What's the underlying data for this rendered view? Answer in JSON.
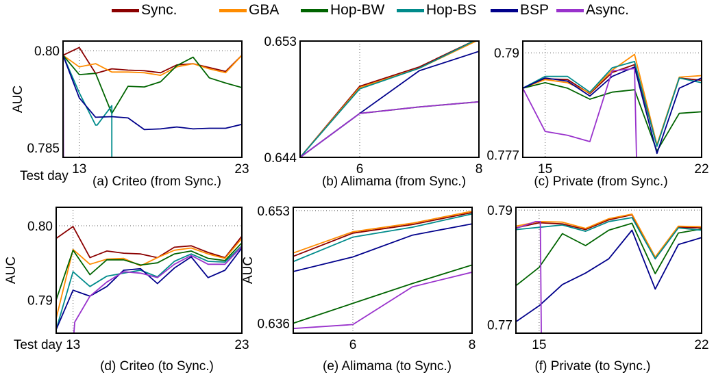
{
  "legend": [
    {
      "name": "Sync.",
      "color": "#8b0000"
    },
    {
      "name": "GBA",
      "color": "#ff8c00"
    },
    {
      "name": "Hop-BW",
      "color": "#006400"
    },
    {
      "name": "Hop-BS",
      "color": "#008b8b"
    },
    {
      "name": "BSP",
      "color": "#00008b"
    },
    {
      "name": "Async.",
      "color": "#9932cc"
    }
  ],
  "chart_data": [
    {
      "type": "line",
      "caption": "(a) Criteo (from Sync.)",
      "ylabel": "AUC",
      "xlabel_prefix": "Test day",
      "xlim": [
        12,
        23
      ],
      "ylim": [
        0.7835,
        0.8015
      ],
      "xticks": [
        13,
        23
      ],
      "yticks": [
        0.785,
        0.8
      ],
      "grid_x": [
        13
      ],
      "grid_y": [
        0.8
      ],
      "series": [
        {
          "name": "Sync.",
          "x": [
            12,
            13,
            14,
            15,
            16,
            17,
            18,
            19,
            20,
            21,
            22,
            23
          ],
          "y": [
            0.7993,
            0.8005,
            0.7965,
            0.7972,
            0.797,
            0.7969,
            0.7966,
            0.7978,
            0.798,
            0.7974,
            0.7968,
            0.7993
          ]
        },
        {
          "name": "GBA",
          "x": [
            12,
            13,
            14,
            15,
            16,
            17,
            18,
            19,
            20,
            21,
            22,
            23
          ],
          "y": [
            0.7993,
            0.7975,
            0.798,
            0.7967,
            0.7967,
            0.7966,
            0.7962,
            0.7975,
            0.798,
            0.7972,
            0.7966,
            0.7993
          ]
        },
        {
          "name": "Hop-BW",
          "x": [
            12,
            13,
            14,
            15,
            16,
            17,
            18,
            19,
            20,
            21,
            22,
            23
          ],
          "y": [
            0.7993,
            0.7963,
            0.7965,
            0.7903,
            0.7945,
            0.7944,
            0.7952,
            0.7977,
            0.799,
            0.7958,
            0.795,
            0.7943
          ]
        },
        {
          "name": "Hop-BS",
          "x": [
            12,
            13,
            14,
            14.1,
            15,
            15
          ],
          "y": [
            0.7993,
            0.7935,
            0.7885,
            0.7885,
            0.7915,
            0.7795
          ]
        },
        {
          "name": "BSP",
          "x": [
            12,
            13,
            14,
            15,
            16,
            17,
            18,
            19,
            20,
            21,
            22,
            23
          ],
          "y": [
            0.7993,
            0.7927,
            0.7897,
            0.7898,
            0.7896,
            0.7878,
            0.7879,
            0.7882,
            0.7879,
            0.788,
            0.788,
            0.7886
          ]
        },
        {
          "name": "Async.",
          "x": [
            12,
            12.04
          ],
          "y": [
            0.7993,
            0.7795
          ]
        }
      ]
    },
    {
      "type": "line",
      "caption": "(b) Alimama (from Sync.)",
      "ylabel": "",
      "xlim": [
        5,
        8
      ],
      "ylim": [
        0.644,
        0.653
      ],
      "xticks": [
        6,
        8
      ],
      "yticks": [
        0.644,
        0.653
      ],
      "grid_x": [
        6
      ],
      "grid_y": [
        0.653
      ],
      "series": [
        {
          "name": "Sync.",
          "x": [
            5,
            6,
            7,
            8
          ],
          "y": [
            0.644,
            0.6495,
            0.651,
            0.6532
          ]
        },
        {
          "name": "GBA",
          "x": [
            5,
            6,
            7,
            8
          ],
          "y": [
            0.644,
            0.6494,
            0.6509,
            0.6531
          ]
        },
        {
          "name": "Hop-BW",
          "x": [
            5,
            6,
            7,
            8
          ],
          "y": [
            0.644,
            0.6474,
            0.6479,
            0.6483
          ]
        },
        {
          "name": "Hop-BS",
          "x": [
            5,
            6,
            7,
            8
          ],
          "y": [
            0.644,
            0.6493,
            0.6509,
            0.6532
          ]
        },
        {
          "name": "BSP",
          "x": [
            5,
            6,
            7,
            8
          ],
          "y": [
            0.644,
            0.6474,
            0.6507,
            0.6522
          ]
        },
        {
          "name": "Async.",
          "x": [
            5,
            6,
            7,
            8
          ],
          "y": [
            0.644,
            0.6474,
            0.6479,
            0.6483
          ]
        }
      ]
    },
    {
      "type": "line",
      "caption": "(c) Private (from Sync.)",
      "ylabel": "",
      "xlim": [
        14,
        22
      ],
      "ylim": [
        0.7767,
        0.7915
      ],
      "xticks": [
        15,
        22
      ],
      "yticks": [
        0.777,
        0.79
      ],
      "grid_x": [
        15
      ],
      "grid_y": [
        0.79
      ],
      "series": [
        {
          "name": "Sync.",
          "x": [
            14,
            15,
            16,
            17,
            18,
            19,
            20,
            21,
            22
          ],
          "y": [
            0.7855,
            0.7867,
            0.7866,
            0.7848,
            0.7875,
            0.7885,
            0.7782,
            0.7868,
            0.7865
          ]
        },
        {
          "name": "GBA",
          "x": [
            14,
            15,
            16,
            17,
            18,
            19,
            20,
            21,
            22
          ],
          "y": [
            0.7855,
            0.7866,
            0.7862,
            0.7849,
            0.7878,
            0.7898,
            0.7783,
            0.7869,
            0.7871
          ]
        },
        {
          "name": "Hop-BW",
          "x": [
            14,
            15,
            16,
            17,
            18,
            19,
            20,
            21,
            22
          ],
          "y": [
            0.7855,
            0.7862,
            0.7855,
            0.7841,
            0.785,
            0.7853,
            0.7775,
            0.7823,
            0.7825
          ]
        },
        {
          "name": "Hop-BS",
          "x": [
            14,
            15,
            16,
            17,
            18,
            19,
            20,
            21,
            22
          ],
          "y": [
            0.7855,
            0.787,
            0.787,
            0.785,
            0.7881,
            0.7889,
            0.7781,
            0.7868,
            0.7862
          ]
        },
        {
          "name": "BSP",
          "x": [
            14,
            15,
            16,
            17,
            18,
            19,
            20,
            21,
            22
          ],
          "y": [
            0.7855,
            0.7868,
            0.7864,
            0.7845,
            0.787,
            0.7882,
            0.7772,
            0.7855,
            0.7868
          ]
        },
        {
          "name": "Async.",
          "x": [
            14,
            15,
            16,
            17,
            18,
            19,
            19.1
          ],
          "y": [
            0.7855,
            0.78,
            0.7795,
            0.7787,
            0.7877,
            0.788,
            0.775
          ]
        }
      ]
    },
    {
      "type": "line",
      "caption": "(d) Criteo (to Sync.)",
      "ylabel": "AUC",
      "xlabel_prefix": "Test day",
      "xlim": [
        12,
        23
      ],
      "ylim": [
        0.7855,
        0.8025
      ],
      "xticks": [
        13,
        23
      ],
      "yticks": [
        0.79,
        0.8
      ],
      "grid_x": [
        13
      ],
      "grid_y": [
        0.8
      ],
      "series": [
        {
          "name": "Sync.",
          "x": [
            12,
            13,
            14,
            15,
            16,
            17,
            18,
            19,
            20,
            21,
            22,
            23
          ],
          "y": [
            0.7983,
            0.7999,
            0.7957,
            0.7966,
            0.7963,
            0.7962,
            0.7957,
            0.7971,
            0.7973,
            0.7964,
            0.7957,
            0.7986
          ]
        },
        {
          "name": "GBA",
          "x": [
            12,
            13,
            14,
            15,
            16,
            17,
            18,
            19,
            20,
            21,
            22,
            23
          ],
          "y": [
            0.7875,
            0.7968,
            0.7948,
            0.7955,
            0.7956,
            0.7946,
            0.7957,
            0.7967,
            0.797,
            0.7962,
            0.7956,
            0.7983
          ]
        },
        {
          "name": "Hop-BW",
          "x": [
            12,
            13,
            14,
            15,
            16,
            17,
            18,
            19,
            20,
            21,
            22,
            23
          ],
          "y": [
            0.79,
            0.7967,
            0.7934,
            0.7954,
            0.7954,
            0.7947,
            0.795,
            0.7962,
            0.7966,
            0.7956,
            0.7953,
            0.7977
          ]
        },
        {
          "name": "Hop-BS",
          "x": [
            12,
            13,
            14,
            15,
            16,
            17,
            18,
            19,
            20,
            21,
            22,
            23
          ],
          "y": [
            0.786,
            0.7938,
            0.7918,
            0.7932,
            0.7936,
            0.794,
            0.7931,
            0.7952,
            0.7962,
            0.7952,
            0.7951,
            0.7973
          ]
        },
        {
          "name": "BSP",
          "x": [
            12,
            13,
            14,
            15,
            16,
            17,
            18,
            19,
            20,
            21,
            22,
            23
          ],
          "y": [
            0.786,
            0.7913,
            0.7905,
            0.7918,
            0.794,
            0.7942,
            0.7922,
            0.7943,
            0.7958,
            0.793,
            0.794,
            0.797
          ]
        },
        {
          "name": "Async.",
          "x": [
            13,
            13.1,
            14,
            15,
            16,
            17,
            18,
            19,
            20,
            21,
            22,
            23
          ],
          "y": [
            0.784,
            0.787,
            0.7905,
            0.7924,
            0.7938,
            0.7936,
            0.793,
            0.7948,
            0.796,
            0.7948,
            0.7948,
            0.7972
          ]
        }
      ]
    },
    {
      "type": "line",
      "caption": "(e) Alimama (to Sync.)",
      "ylabel": "AUC",
      "xlim": [
        5,
        8
      ],
      "ylim": [
        0.6345,
        0.6535
      ],
      "xticks": [
        6,
        8
      ],
      "yticks": [
        0.636,
        0.653
      ],
      "grid_x": [
        6
      ],
      "grid_y": [
        0.653
      ],
      "series": [
        {
          "name": "Sync.",
          "x": [
            5,
            6,
            7,
            8
          ],
          "y": [
            0.6461,
            0.6496,
            0.6509,
            0.6527
          ]
        },
        {
          "name": "GBA",
          "x": [
            5,
            6,
            7,
            8
          ],
          "y": [
            0.6466,
            0.6498,
            0.6511,
            0.6529
          ]
        },
        {
          "name": "Hop-BW",
          "x": [
            5,
            6,
            7,
            8
          ],
          "y": [
            0.636,
            0.639,
            0.642,
            0.6448
          ]
        },
        {
          "name": "Hop-BS",
          "x": [
            5,
            6,
            7,
            8
          ],
          "y": [
            0.6453,
            0.649,
            0.6505,
            0.6525
          ]
        },
        {
          "name": "BSP",
          "x": [
            5,
            6,
            7,
            8
          ],
          "y": [
            0.6438,
            0.646,
            0.6493,
            0.651
          ]
        },
        {
          "name": "Async.",
          "x": [
            5,
            6,
            7,
            8
          ],
          "y": [
            0.6352,
            0.6358,
            0.6415,
            0.6437
          ]
        }
      ]
    },
    {
      "type": "line",
      "caption": "(f) Private (to Sync.)",
      "ylabel": "",
      "xlim": [
        14,
        22
      ],
      "ylim": [
        0.7685,
        0.7905
      ],
      "xticks": [
        15,
        22
      ],
      "yticks": [
        0.77,
        0.79
      ],
      "grid_x": [
        15
      ],
      "grid_y": [
        0.79
      ],
      "series": [
        {
          "name": "Sync.",
          "x": [
            14,
            15,
            16,
            17,
            18,
            19,
            20,
            21,
            22
          ],
          "y": [
            0.7869,
            0.7878,
            0.7876,
            0.7866,
            0.7883,
            0.7892,
            0.7815,
            0.787,
            0.7869
          ]
        },
        {
          "name": "GBA",
          "x": [
            14,
            15,
            16,
            17,
            18,
            19,
            20,
            21,
            22
          ],
          "y": [
            0.7872,
            0.788,
            0.7879,
            0.7868,
            0.7885,
            0.7893,
            0.7818,
            0.7872,
            0.7871
          ]
        },
        {
          "name": "Hop-BW",
          "x": [
            14,
            15,
            16,
            17,
            18,
            19,
            20,
            21,
            22
          ],
          "y": [
            0.7768,
            0.78,
            0.7859,
            0.7838,
            0.7865,
            0.7877,
            0.7789,
            0.786,
            0.7867
          ]
        },
        {
          "name": "Hop-BS",
          "x": [
            14,
            15,
            16,
            17,
            18,
            19,
            20,
            21,
            22
          ],
          "y": [
            0.7866,
            0.787,
            0.7874,
            0.7863,
            0.788,
            0.7887,
            0.7815,
            0.7869,
            0.7865
          ]
        },
        {
          "name": "BSP",
          "x": [
            14,
            15,
            16,
            17,
            18,
            19,
            20,
            21,
            22
          ],
          "y": [
            0.7705,
            0.7733,
            0.777,
            0.779,
            0.7815,
            0.7865,
            0.7762,
            0.784,
            0.7852
          ]
        },
        {
          "name": "Async.",
          "x": [
            14,
            14.85,
            15.05,
            15.1
          ],
          "y": [
            0.7868,
            0.788,
            0.788,
            0.765
          ]
        }
      ]
    }
  ]
}
